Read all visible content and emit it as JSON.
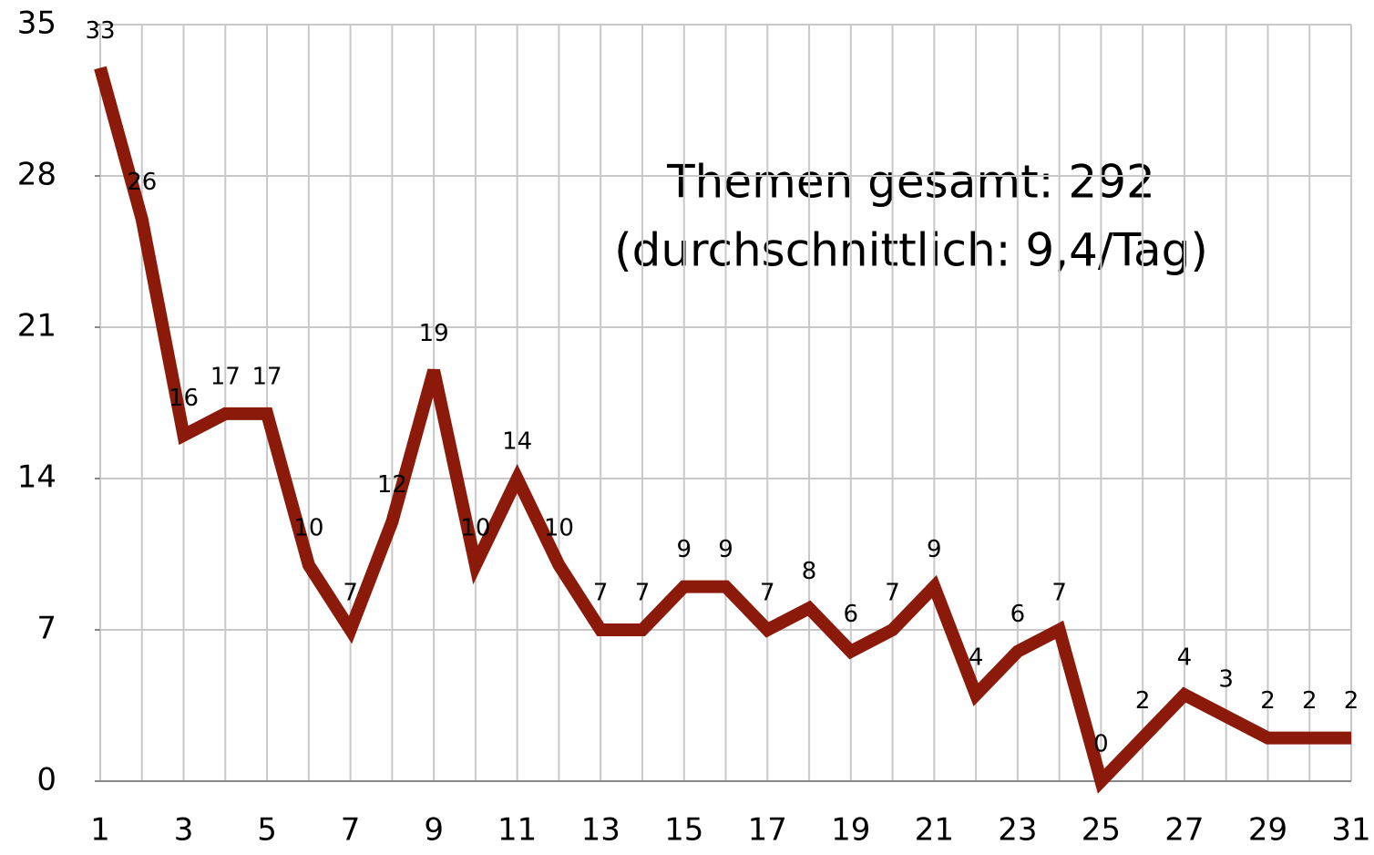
{
  "chart_data": {
    "type": "line",
    "annotation": [
      "Themen gesamt: 292",
      "(durchschnittlich: 9,4/Tag)"
    ],
    "categories": [
      "1",
      null,
      "3",
      null,
      "5",
      null,
      "7",
      null,
      "9",
      null,
      "11",
      null,
      "13",
      null,
      "15",
      null,
      "17",
      null,
      "19",
      null,
      "21",
      null,
      "23",
      null,
      "25",
      null,
      "27",
      null,
      "29",
      null,
      "31"
    ],
    "series": [
      {
        "name": "Themen",
        "color": "#8b1a0b",
        "values": [
          33,
          26,
          16,
          17,
          17,
          10,
          7,
          12,
          19,
          10,
          14,
          10,
          7,
          7,
          9,
          9,
          7,
          8,
          6,
          7,
          9,
          4,
          6,
          7,
          0,
          2,
          4,
          3,
          2,
          2,
          2
        ]
      }
    ],
    "ylim": [
      0,
      35
    ],
    "yticks": [
      0,
      7,
      14,
      21,
      28,
      35
    ],
    "grid": true,
    "data_labels": true
  }
}
